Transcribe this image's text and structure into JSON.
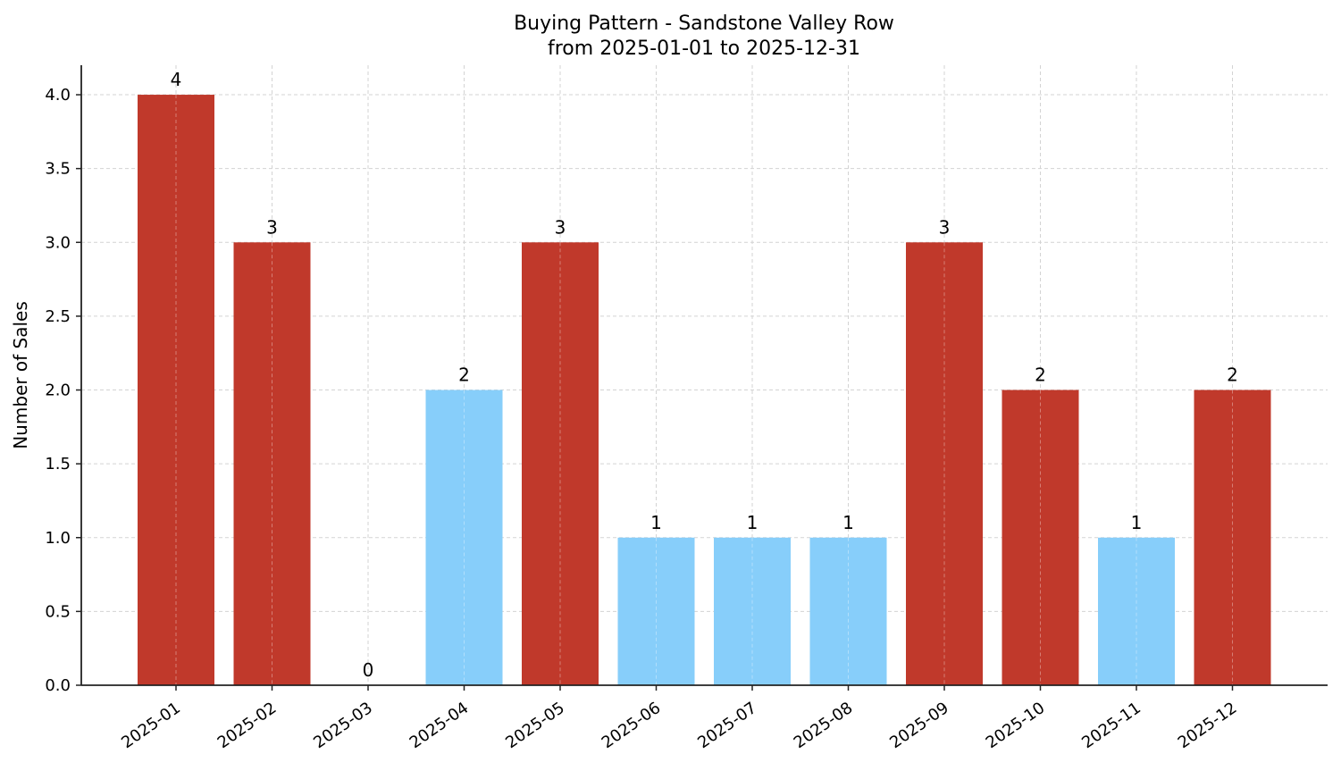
{
  "chart_data": {
    "type": "bar",
    "title": "Buying Pattern - Sandstone Valley Row",
    "subtitle": "from 2025-01-01 to 2025-12-31",
    "xlabel": "",
    "ylabel": "Number of Sales",
    "categories": [
      "2025-01",
      "2025-02",
      "2025-03",
      "2025-04",
      "2025-05",
      "2025-06",
      "2025-07",
      "2025-08",
      "2025-09",
      "2025-10",
      "2025-11",
      "2025-12"
    ],
    "values": [
      4,
      3,
      0,
      2,
      3,
      1,
      1,
      1,
      3,
      2,
      1,
      2
    ],
    "bar_colors": [
      "#c0392b",
      "#c0392b",
      "#c0392b",
      "#87cefa",
      "#c0392b",
      "#87cefa",
      "#87cefa",
      "#87cefa",
      "#c0392b",
      "#c0392b",
      "#87cefa",
      "#c0392b"
    ],
    "data_labels": [
      "4",
      "3",
      "0",
      "2",
      "3",
      "1",
      "1",
      "1",
      "3",
      "2",
      "1",
      "2"
    ],
    "yticks": [
      "0.0",
      "0.5",
      "1.0",
      "1.5",
      "2.0",
      "2.5",
      "3.0",
      "3.5",
      "4.0"
    ],
    "ylim": [
      0,
      4.2
    ],
    "grid": true,
    "legend": null,
    "colors": {
      "high": "#c0392b",
      "low": "#87cefa"
    }
  }
}
